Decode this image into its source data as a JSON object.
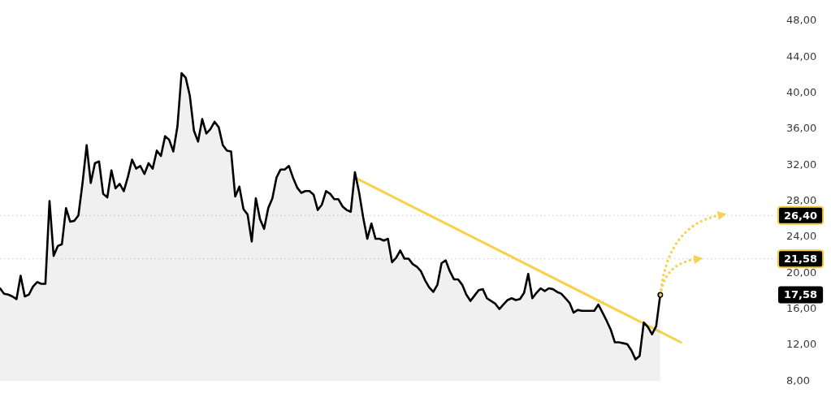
{
  "chart_data": {
    "type": "area",
    "tick_labels": "y",
    "categories": [
      null,
      null,
      null,
      null,
      null,
      null,
      null,
      null,
      null,
      null,
      null,
      null,
      null,
      null,
      null,
      null,
      null,
      null,
      null,
      null,
      null,
      null,
      null,
      null,
      null,
      null,
      null,
      null,
      null,
      null,
      null,
      null,
      null,
      null,
      null,
      null,
      null,
      null,
      null,
      null,
      null,
      null,
      null,
      null,
      null,
      null,
      null,
      null,
      null,
      null,
      null,
      null,
      null,
      null,
      null,
      null,
      null,
      null,
      null,
      null,
      null,
      null,
      null,
      null,
      null,
      null,
      null,
      null,
      null,
      null,
      null,
      null,
      null,
      null,
      null,
      null,
      null,
      null,
      null,
      null,
      null,
      null,
      null,
      null,
      null,
      null,
      null,
      null,
      null,
      null,
      null,
      null,
      null,
      null,
      null,
      null,
      null,
      null,
      null,
      null,
      null,
      null,
      null,
      null,
      null,
      null,
      null,
      null,
      null,
      null,
      null,
      null,
      null,
      null,
      null,
      null,
      null,
      null,
      null,
      null,
      null,
      null,
      null,
      null,
      null,
      null,
      null,
      null,
      null,
      null,
      null,
      null,
      null,
      null,
      null,
      null,
      null,
      null,
      null,
      null,
      null,
      null,
      null,
      null,
      null,
      null,
      null,
      null,
      null,
      null,
      null,
      null,
      null,
      null,
      null,
      null,
      null,
      null,
      null,
      null,
      null,
      null,
      null,
      null,
      null,
      null,
      null,
      null,
      null,
      null,
      null,
      null,
      null,
      null,
      null,
      null,
      null,
      null,
      null,
      null,
      null,
      null,
      null,
      null,
      null,
      null,
      null,
      null
    ],
    "series": [
      {
        "color": "#000000",
        "values": [
          18.3,
          17.7,
          17.6,
          17.4,
          17.1,
          19.7,
          17.4,
          17.6,
          18.5,
          19.0,
          18.8,
          18.8,
          28.0,
          21.9,
          23.0,
          23.2,
          27.2,
          25.7,
          25.8,
          26.4,
          30.0,
          34.2,
          30.0,
          32.2,
          32.4,
          28.8,
          28.4,
          31.4,
          29.4,
          29.9,
          29.1,
          30.7,
          32.6,
          31.6,
          31.9,
          31.0,
          32.2,
          31.6,
          33.6,
          33.0,
          35.2,
          34.8,
          33.5,
          36.3,
          42.2,
          41.7,
          39.7,
          35.8,
          34.6,
          37.1,
          35.5,
          36.0,
          36.8,
          36.2,
          34.2,
          33.6,
          33.5,
          28.5,
          29.6,
          27.1,
          26.5,
          23.5,
          28.3,
          26.0,
          24.9,
          27.2,
          28.3,
          30.6,
          31.5,
          31.5,
          31.9,
          30.6,
          29.5,
          28.9,
          29.1,
          29.1,
          28.7,
          27.0,
          27.6,
          29.1,
          28.8,
          28.2,
          28.2,
          27.4,
          27.0,
          26.8,
          31.2,
          29.0,
          26.2,
          23.8,
          25.5,
          23.8,
          23.8,
          23.6,
          23.8,
          21.2,
          21.7,
          22.5,
          21.6,
          21.6,
          21.0,
          20.7,
          20.2,
          19.2,
          18.4,
          17.9,
          18.7,
          21.1,
          21.4,
          20.2,
          19.3,
          19.3,
          18.7,
          17.6,
          16.9,
          17.5,
          18.1,
          18.2,
          17.2,
          16.9,
          16.6,
          16.0,
          16.5,
          17.0,
          17.2,
          17.0,
          17.1,
          17.8,
          19.9,
          17.2,
          17.8,
          18.3,
          18.0,
          18.3,
          18.2,
          17.9,
          17.7,
          17.2,
          16.7,
          15.6,
          15.9,
          15.8,
          15.8,
          15.8,
          15.8,
          16.5,
          15.6,
          14.7,
          13.7,
          12.3,
          12.3,
          12.2,
          12.1,
          11.4,
          10.4,
          10.8,
          14.5,
          14.0,
          13.2,
          14.1,
          17.58,
          null,
          null,
          null,
          null,
          null,
          null,
          null,
          null,
          null,
          null,
          null,
          null,
          null,
          null,
          null,
          null,
          null,
          null,
          null,
          null,
          null,
          null,
          null,
          null,
          null,
          null,
          null
        ]
      },
      {
        "type": "line",
        "color": "#f8d04a",
        "values": [
          null,
          null,
          null,
          null,
          null,
          null,
          null,
          null,
          null,
          null,
          null,
          null,
          null,
          null,
          null,
          null,
          null,
          null,
          null,
          null,
          null,
          null,
          null,
          null,
          null,
          null,
          null,
          null,
          null,
          null,
          null,
          null,
          null,
          null,
          null,
          null,
          null,
          null,
          null,
          null,
          null,
          null,
          null,
          null,
          null,
          null,
          null,
          null,
          null,
          null,
          null,
          null,
          null,
          null,
          null,
          null,
          null,
          null,
          null,
          null,
          null,
          null,
          null,
          null,
          null,
          null,
          null,
          null,
          null,
          null,
          null,
          null,
          null,
          null,
          null,
          null,
          null,
          null,
          null,
          null,
          null,
          null,
          null,
          null,
          null,
          null,
          30.6,
          null,
          null,
          null,
          null,
          null,
          null,
          null,
          null,
          null,
          null,
          null,
          null,
          null,
          null,
          null,
          null,
          null,
          null,
          null,
          null,
          null,
          null,
          null,
          null,
          null,
          null,
          null,
          null,
          null,
          null,
          null,
          null,
          null,
          null,
          null,
          null,
          null,
          null,
          null,
          null,
          null,
          null,
          null,
          null,
          null,
          null,
          null,
          null,
          null,
          null,
          null,
          null,
          null,
          null,
          null,
          null,
          null,
          null,
          null,
          null,
          null,
          null,
          null,
          null,
          null,
          null,
          null,
          null,
          null,
          null,
          null,
          null,
          null,
          null,
          null,
          null,
          null,
          null,
          12.3,
          null,
          null,
          null,
          null,
          null,
          null,
          null,
          null,
          null,
          null,
          null,
          null,
          null,
          null,
          null,
          null,
          null,
          null,
          null,
          null,
          null,
          null
        ]
      }
    ],
    "ylim": [
      8,
      48
    ],
    "yticks": [
      {
        "value": 8,
        "label": "8,00"
      },
      {
        "value": 12,
        "label": "12,00"
      },
      {
        "value": 16,
        "label": "16,00"
      },
      {
        "value": 20,
        "label": "20,00"
      },
      {
        "value": 24,
        "label": "24,00"
      },
      {
        "value": 28,
        "label": "28,00"
      },
      {
        "value": 32,
        "label": "32,00"
      },
      {
        "value": 36,
        "label": "36,00"
      },
      {
        "value": 40,
        "label": "40,00"
      },
      {
        "value": 44,
        "label": "44,00"
      },
      {
        "value": 48,
        "label": "48,00"
      }
    ],
    "ref_lines": [
      {
        "axis": "y",
        "value": 26.4,
        "label": "26,40",
        "color": "#c8c8c8",
        "line_style": "dotted"
      },
      {
        "axis": "y",
        "value": 21.58,
        "label": "21,58",
        "color": "#c8c8c8",
        "line_style": "dotted"
      }
    ],
    "annotations": [
      "17,58"
    ]
  }
}
